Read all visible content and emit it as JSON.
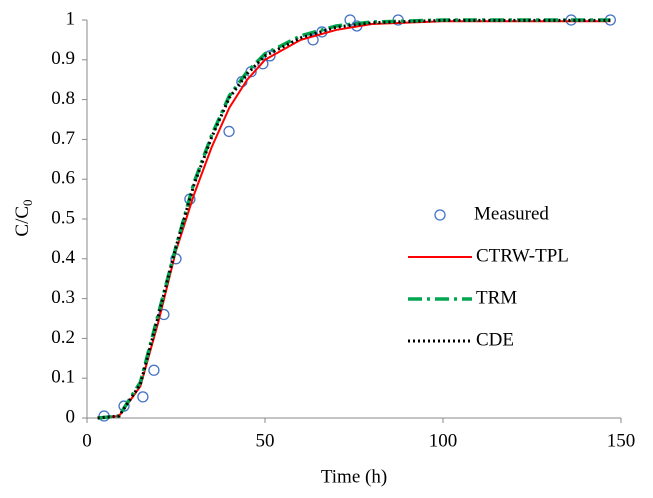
{
  "chart_data": {
    "type": "line",
    "x_label": "Time (h)",
    "y_label_parts": [
      "C/C",
      "0"
    ],
    "xlim": [
      0,
      150
    ],
    "xticks": [
      0,
      50,
      100,
      150
    ],
    "ylim": [
      0,
      1
    ],
    "yticks": [
      0,
      0.1,
      0.2,
      0.3,
      0.4,
      0.5,
      0.6,
      0.7,
      0.8,
      0.9,
      1
    ],
    "grid": false,
    "legend": "right",
    "series": [
      {
        "name": "Measured",
        "type": "scatter",
        "color": "#4472c4",
        "x": [
          4.8,
          10.4,
          15.7,
          18.8,
          21.6,
          25.0,
          28.9,
          39.9,
          43.5,
          46.1,
          49.4,
          51.4,
          63.5,
          66.0,
          73.9,
          75.8,
          87.4,
          136,
          147
        ],
        "values": [
          0.005,
          0.03,
          0.053,
          0.12,
          0.26,
          0.4,
          0.55,
          0.72,
          0.845,
          0.87,
          0.89,
          0.91,
          0.95,
          0.97,
          1.0,
          0.985,
          1.0,
          1.0,
          1.0
        ]
      },
      {
        "name": "CTRW-TPL",
        "type": "line",
        "color": "#ff0000",
        "line_style": "solid",
        "x": [
          3,
          9,
          15,
          20,
          25,
          30,
          35,
          40,
          45,
          50,
          60,
          70,
          80,
          100,
          147
        ],
        "values": [
          0,
          0.005,
          0.08,
          0.24,
          0.42,
          0.56,
          0.68,
          0.78,
          0.85,
          0.9,
          0.95,
          0.975,
          0.99,
          0.997,
          0.997
        ]
      },
      {
        "name": "TRM",
        "type": "line",
        "color": "#00a550",
        "line_style": "dashdot",
        "x": [
          3,
          9,
          15,
          20,
          25,
          30,
          35,
          40,
          45,
          50,
          60,
          70,
          80,
          100,
          147
        ],
        "values": [
          0,
          0.005,
          0.09,
          0.26,
          0.43,
          0.59,
          0.71,
          0.81,
          0.87,
          0.915,
          0.96,
          0.985,
          0.995,
          1,
          1
        ]
      },
      {
        "name": "CDE",
        "type": "line",
        "color": "#000000",
        "line_style": "dotted",
        "x": [
          3,
          9,
          15,
          20,
          25,
          30,
          35,
          40,
          45,
          50,
          60,
          70,
          80,
          100,
          147
        ],
        "values": [
          0,
          0.005,
          0.085,
          0.255,
          0.43,
          0.585,
          0.705,
          0.805,
          0.865,
          0.91,
          0.955,
          0.982,
          0.993,
          0.999,
          0.999
        ]
      }
    ]
  }
}
